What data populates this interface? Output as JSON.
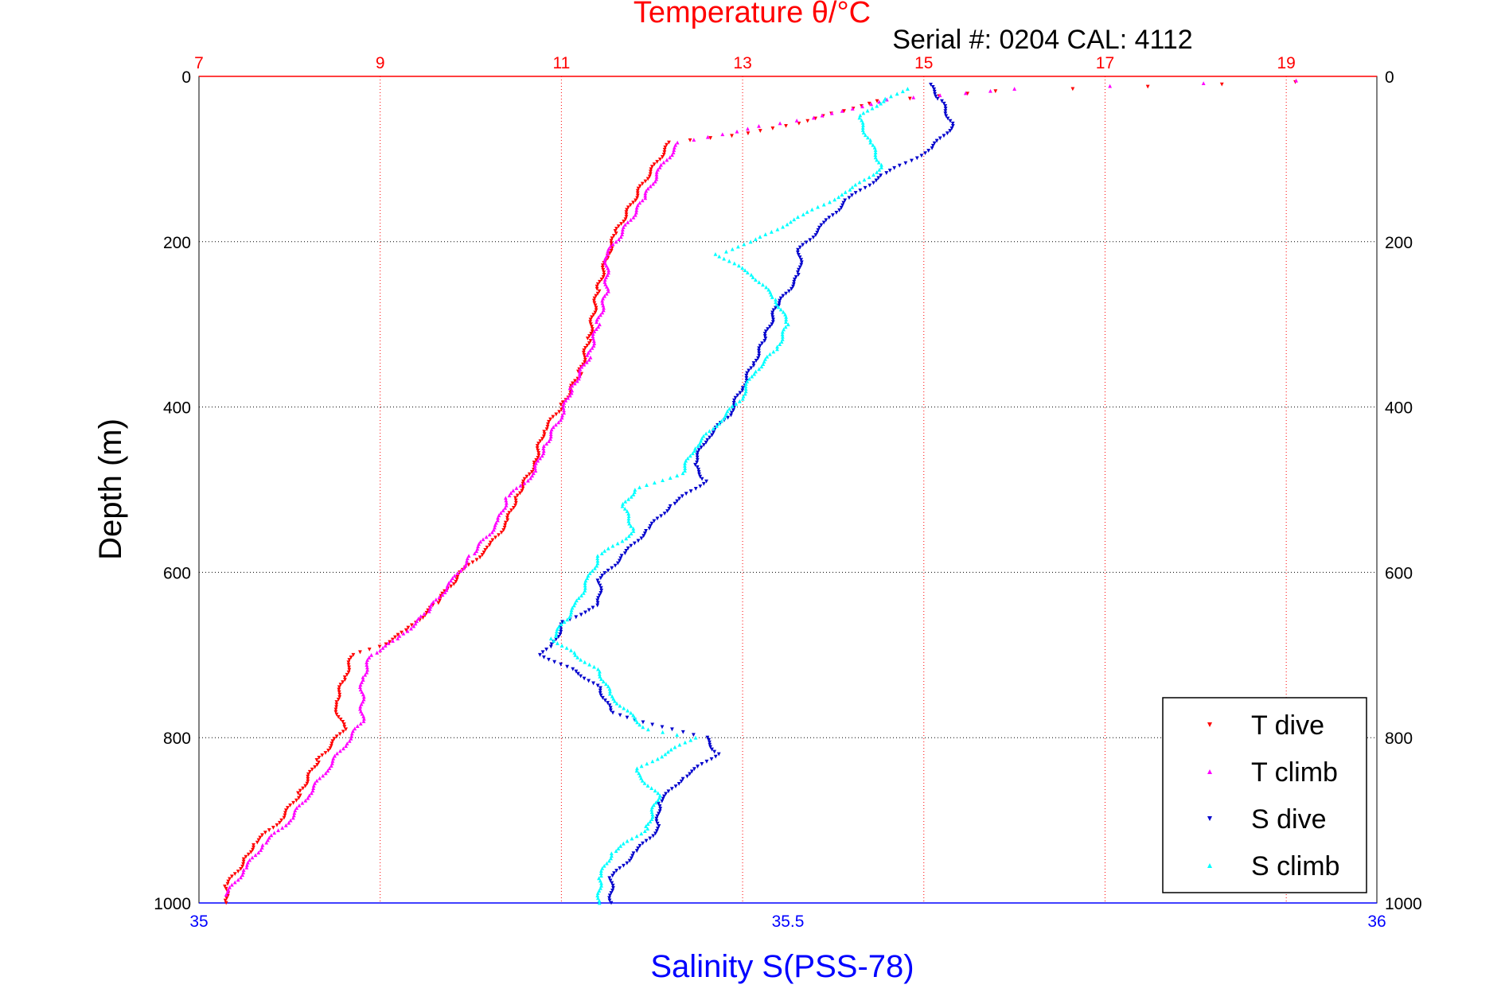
{
  "chart_data": {
    "type": "scatter",
    "title": "Temperature θ/°C",
    "subtitle": "Serial #: 0204  CAL: 4112",
    "ylabel": "Depth (m)",
    "xlabel": "Salinity S(PSS-78)",
    "y_axis": {
      "min": 0,
      "max": 1000,
      "reversed": true,
      "ticks": [
        0,
        200,
        400,
        600,
        800,
        1000
      ]
    },
    "x_temperature_axis": {
      "position": "top",
      "min": 7,
      "max": 20,
      "ticks": [
        7,
        9,
        11,
        13,
        15,
        17,
        19
      ],
      "color": "#ff0000"
    },
    "x_salinity_axis": {
      "position": "bottom",
      "min": 35,
      "max": 36,
      "ticks": [
        35,
        35.5,
        36
      ],
      "color": "#0000ff"
    },
    "grid": true,
    "legend_position": "bottom-right",
    "series": [
      {
        "name": "T dive",
        "axis": "temperature",
        "marker": "down-triangle",
        "color": "#ff0000",
        "points": [
          [
            19.1,
            7
          ],
          [
            15.8,
            18
          ],
          [
            14.5,
            30
          ],
          [
            14.0,
            45
          ],
          [
            13.5,
            60
          ],
          [
            12.9,
            72
          ],
          [
            12.2,
            80
          ],
          [
            11.9,
            130
          ],
          [
            11.6,
            190
          ],
          [
            11.5,
            220
          ],
          [
            11.4,
            260
          ],
          [
            11.3,
            320
          ],
          [
            11.2,
            360
          ],
          [
            11.0,
            400
          ],
          [
            10.8,
            430
          ],
          [
            10.7,
            470
          ],
          [
            10.5,
            510
          ],
          [
            10.4,
            540
          ],
          [
            10.2,
            570
          ],
          [
            9.9,
            600
          ],
          [
            9.6,
            640
          ],
          [
            9.3,
            670
          ],
          [
            9.0,
            690
          ],
          [
            8.7,
            700
          ],
          [
            8.6,
            730
          ],
          [
            8.5,
            760
          ],
          [
            8.6,
            790
          ],
          [
            8.3,
            830
          ],
          [
            8.1,
            870
          ],
          [
            7.9,
            900
          ],
          [
            7.6,
            930
          ],
          [
            7.5,
            950
          ],
          [
            7.3,
            980
          ],
          [
            7.3,
            1000
          ]
        ]
      },
      {
        "name": "T climb",
        "axis": "temperature",
        "marker": "up-triangle",
        "color": "#ff00ff",
        "points": [
          [
            19.1,
            5
          ],
          [
            16.0,
            15
          ],
          [
            14.6,
            28
          ],
          [
            13.8,
            50
          ],
          [
            13.2,
            60
          ],
          [
            12.8,
            70
          ],
          [
            12.3,
            80
          ],
          [
            12.1,
            110
          ],
          [
            11.9,
            150
          ],
          [
            11.6,
            200
          ],
          [
            11.5,
            215
          ],
          [
            11.5,
            260
          ],
          [
            11.4,
            300
          ],
          [
            11.3,
            340
          ],
          [
            11.1,
            380
          ],
          [
            11.0,
            410
          ],
          [
            10.8,
            450
          ],
          [
            10.7,
            480
          ],
          [
            10.4,
            510
          ],
          [
            10.3,
            540
          ],
          [
            10.0,
            580
          ],
          [
            9.8,
            610
          ],
          [
            9.5,
            650
          ],
          [
            9.2,
            680
          ],
          [
            8.9,
            700
          ],
          [
            8.8,
            730
          ],
          [
            8.8,
            780
          ],
          [
            8.6,
            810
          ],
          [
            8.4,
            840
          ],
          [
            8.2,
            870
          ],
          [
            8.0,
            900
          ],
          [
            7.7,
            930
          ],
          [
            7.5,
            960
          ],
          [
            7.3,
            990
          ]
        ]
      },
      {
        "name": "S dive",
        "axis": "salinity",
        "marker": "down-triangle",
        "color": "#0000cc",
        "points": [
          [
            35.62,
            10
          ],
          [
            35.63,
            30
          ],
          [
            35.64,
            60
          ],
          [
            35.62,
            90
          ],
          [
            35.58,
            120
          ],
          [
            35.55,
            150
          ],
          [
            35.53,
            180
          ],
          [
            35.51,
            210
          ],
          [
            35.51,
            240
          ],
          [
            35.49,
            280
          ],
          [
            35.48,
            320
          ],
          [
            35.47,
            350
          ],
          [
            35.46,
            380
          ],
          [
            35.45,
            410
          ],
          [
            35.43,
            440
          ],
          [
            35.42,
            470
          ],
          [
            35.43,
            490
          ],
          [
            35.4,
            520
          ],
          [
            35.38,
            550
          ],
          [
            35.36,
            580
          ],
          [
            35.34,
            610
          ],
          [
            35.34,
            640
          ],
          [
            35.31,
            660
          ],
          [
            35.3,
            690
          ],
          [
            35.29,
            700
          ],
          [
            35.32,
            720
          ],
          [
            35.34,
            740
          ],
          [
            35.35,
            770
          ],
          [
            35.4,
            790
          ],
          [
            35.43,
            800
          ],
          [
            35.44,
            820
          ],
          [
            35.41,
            850
          ],
          [
            35.39,
            880
          ],
          [
            35.39,
            910
          ],
          [
            35.37,
            940
          ],
          [
            35.35,
            970
          ],
          [
            35.35,
            1000
          ]
        ]
      },
      {
        "name": "S climb",
        "axis": "salinity",
        "marker": "up-triangle",
        "color": "#00ffff",
        "points": [
          [
            35.6,
            15
          ],
          [
            35.58,
            30
          ],
          [
            35.56,
            50
          ],
          [
            35.57,
            80
          ],
          [
            35.58,
            110
          ],
          [
            35.55,
            140
          ],
          [
            35.51,
            170
          ],
          [
            35.47,
            200
          ],
          [
            35.44,
            215
          ],
          [
            35.47,
            240
          ],
          [
            35.49,
            270
          ],
          [
            35.5,
            300
          ],
          [
            35.49,
            330
          ],
          [
            35.47,
            360
          ],
          [
            35.46,
            390
          ],
          [
            35.44,
            420
          ],
          [
            35.42,
            450
          ],
          [
            35.41,
            480
          ],
          [
            35.37,
            500
          ],
          [
            35.36,
            520
          ],
          [
            35.37,
            550
          ],
          [
            35.34,
            580
          ],
          [
            35.33,
            610
          ],
          [
            35.32,
            640
          ],
          [
            35.3,
            680
          ],
          [
            35.32,
            700
          ],
          [
            35.34,
            720
          ],
          [
            35.35,
            750
          ],
          [
            35.38,
            790
          ],
          [
            35.42,
            800
          ],
          [
            35.37,
            840
          ],
          [
            35.39,
            870
          ],
          [
            35.38,
            910
          ],
          [
            35.35,
            940
          ],
          [
            35.34,
            970
          ],
          [
            35.34,
            1000
          ]
        ]
      }
    ]
  }
}
